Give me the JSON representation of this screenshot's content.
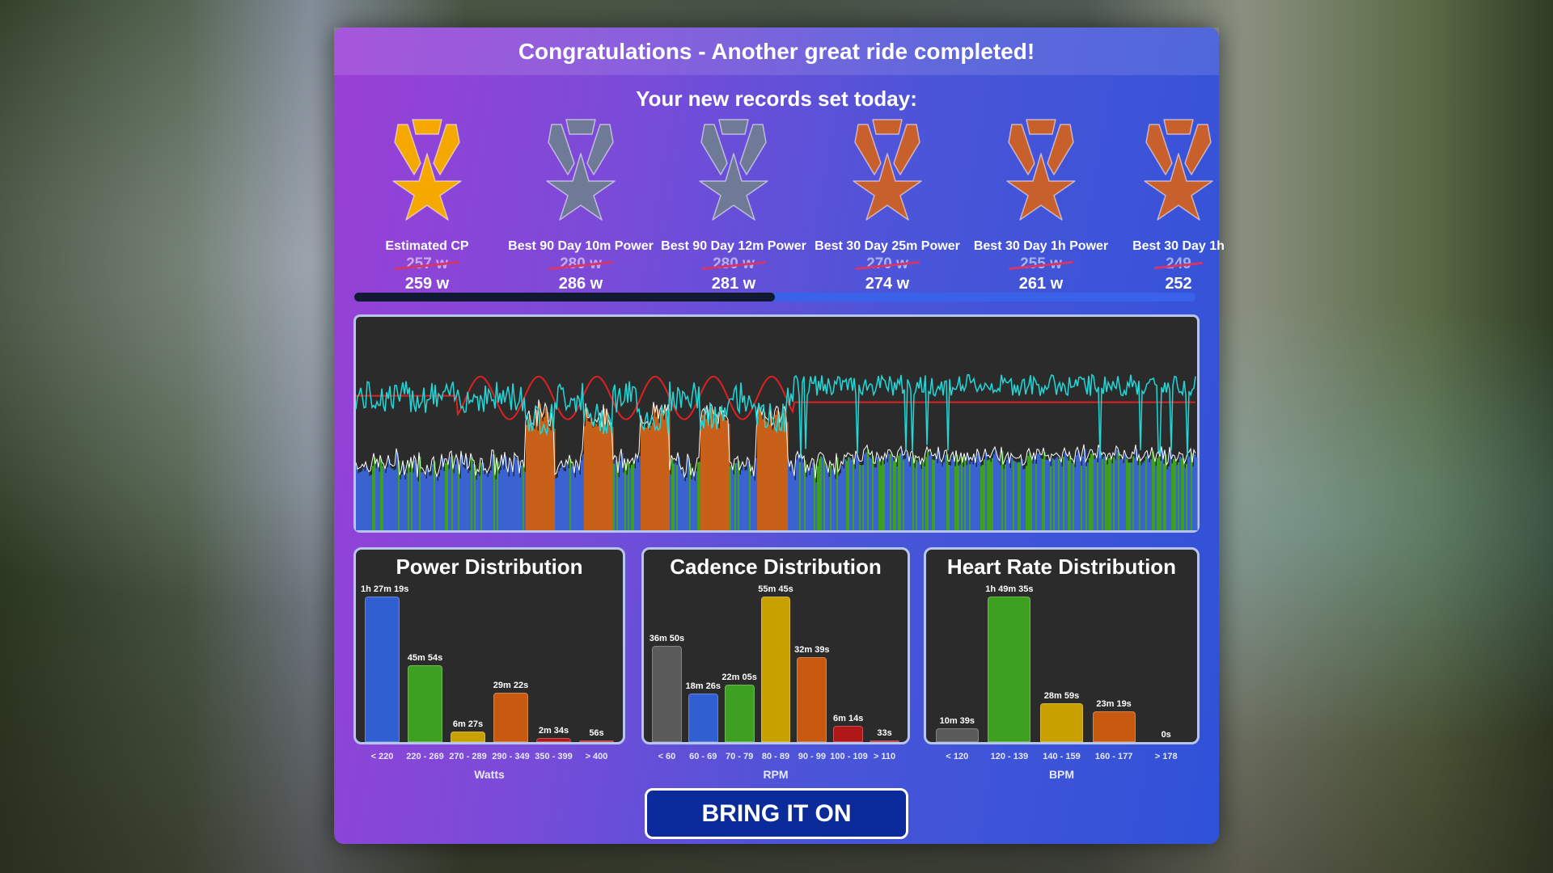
{
  "header": {
    "title": "Congratulations - Another great ride completed!"
  },
  "records": {
    "subtitle": "Your new records set today:",
    "items": [
      {
        "label": "Estimated CP",
        "old": "257 w",
        "new": "259 w",
        "medal": "gold",
        "color": "#f5a800"
      },
      {
        "label": "Best 90 Day 10m Power",
        "old": "280 w",
        "new": "286 w",
        "medal": "silver",
        "color": "#6e7a96"
      },
      {
        "label": "Best 90 Day 12m Power",
        "old": "280 w",
        "new": "281 w",
        "medal": "silver",
        "color": "#6e7a96"
      },
      {
        "label": "Best 30 Day 25m Power",
        "old": "270 w",
        "new": "274 w",
        "medal": "bronze",
        "color": "#c8602e"
      },
      {
        "label": "Best 30 Day 1h Power",
        "old": "255 w",
        "new": "261 w",
        "medal": "bronze",
        "color": "#c8602e"
      },
      {
        "label": "Best 30 Day 1h",
        "old": "249",
        "new": "252",
        "medal": "bronze",
        "color": "#c8602e"
      }
    ],
    "scroll_fraction": 0.5
  },
  "ride_graph": {
    "series_colors": {
      "power_low": "#3a62d0",
      "power_z2": "#3ea020",
      "power_z4": "#c8601a",
      "power_line": "#ffffff",
      "cadence": "#20d8d8",
      "heart_rate": "#e02020"
    }
  },
  "chart_data": [
    {
      "type": "bar",
      "title": "Power Distribution",
      "xlabel": "Watts",
      "categories": [
        "< 220",
        "220 - 269",
        "270 - 289",
        "290 - 349",
        "350 - 399",
        "> 400"
      ],
      "values_seconds": [
        5239,
        2754,
        387,
        1762,
        154,
        56
      ],
      "labels": [
        "1h 27m 19s",
        "45m 54s",
        "6m 27s",
        "29m 22s",
        "2m 34s",
        "56s"
      ],
      "colors": [
        "#2f5fd0",
        "#3ea020",
        "#c8a000",
        "#c85a10",
        "#b01818",
        "#b01818"
      ]
    },
    {
      "type": "bar",
      "title": "Cadence Distribution",
      "xlabel": "RPM",
      "categories": [
        "< 60",
        "60 - 69",
        "70 - 79",
        "80 - 89",
        "90 - 99",
        "100 - 109",
        "> 110"
      ],
      "values_seconds": [
        2210,
        1106,
        1325,
        3345,
        1959,
        374,
        33
      ],
      "labels": [
        "36m 50s",
        "18m 26s",
        "22m 05s",
        "55m 45s",
        "32m 39s",
        "6m 14s",
        "33s"
      ],
      "colors": [
        "#5a5a5a",
        "#2f5fd0",
        "#3ea020",
        "#c8a000",
        "#c85a10",
        "#b01818",
        "#b01818"
      ]
    },
    {
      "type": "bar",
      "title": "Heart Rate Distribution",
      "xlabel": "BPM",
      "categories": [
        "< 120",
        "120 - 139",
        "140 - 159",
        "160 - 177",
        "> 178"
      ],
      "values_seconds": [
        639,
        6575,
        1739,
        1399,
        0
      ],
      "labels": [
        "10m 39s",
        "1h 49m 35s",
        "28m 59s",
        "23m 19s",
        "0s"
      ],
      "colors": [
        "#5a5a5a",
        "#3ea020",
        "#c8a000",
        "#c85a10",
        "#b01818"
      ]
    }
  ],
  "button": {
    "label": "BRING IT ON"
  }
}
